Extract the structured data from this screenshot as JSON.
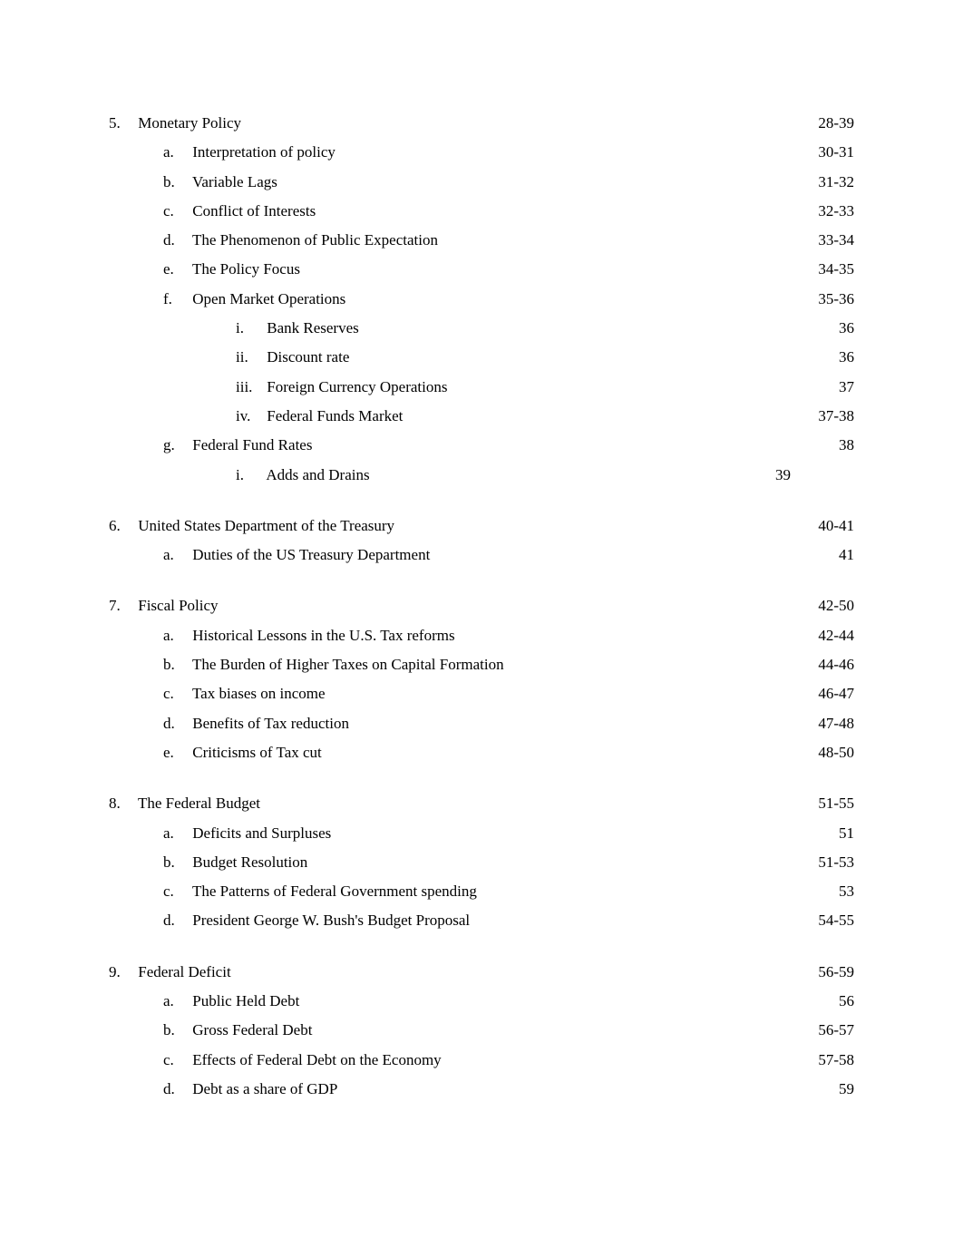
{
  "sections": [
    {
      "marker": "5.",
      "title": "Monetary Policy",
      "page": "28-39",
      "items": [
        {
          "marker": "a.",
          "title": "Interpretation of policy",
          "page": "30-31"
        },
        {
          "marker": "b.",
          "title": "Variable Lags",
          "page": "31-32"
        },
        {
          "marker": "c.",
          "title": "Conflict of Interests",
          "page": "32-33"
        },
        {
          "marker": "d.",
          "title": "The Phenomenon of Public Expectation",
          "page": "33-34"
        },
        {
          "marker": "e.",
          "title": "The Policy Focus",
          "page": "34-35"
        },
        {
          "marker": "f.",
          "title": "Open Market Operations",
          "page": "35-36",
          "subitems": [
            {
              "marker": "i.",
              "title": "Bank Reserves",
              "page": "36"
            },
            {
              "marker": "ii.",
              "title": "Discount rate",
              "page": "36"
            },
            {
              "marker": "iii.",
              "title": "Foreign Currency Operations",
              "page": "37"
            },
            {
              "marker": "iv.",
              "title": "Federal Funds Market",
              "page": "37-38"
            }
          ]
        },
        {
          "marker": "g.",
          "title": "Federal Fund Rates",
          "page": "38",
          "subitems": [
            {
              "marker": "i.",
              "title": "Adds and Drains",
              "page": "39",
              "page_offset": true
            }
          ]
        }
      ]
    },
    {
      "marker": "6.",
      "title": "United States Department of the Treasury",
      "page": "40-41",
      "items": [
        {
          "marker": "a.",
          "title": "Duties of the US Treasury Department",
          "page": "41"
        }
      ]
    },
    {
      "marker": "7.",
      "title": "Fiscal Policy",
      "page": "42-50",
      "items": [
        {
          "marker": "a.",
          "title": "Historical Lessons in the U.S. Tax reforms",
          "page": "42-44"
        },
        {
          "marker": "b.",
          "title": "The Burden of Higher Taxes on Capital Formation",
          "page": "44-46"
        },
        {
          "marker": "c.",
          "title": "Tax biases on income",
          "page": "46-47"
        },
        {
          "marker": "d.",
          "title": "Benefits of Tax reduction",
          "page": "47-48"
        },
        {
          "marker": "e.",
          "title": "Criticisms of Tax cut",
          "page": "48-50"
        }
      ]
    },
    {
      "marker": "8.",
      "title": "The Federal Budget",
      "page": "51-55",
      "items": [
        {
          "marker": "a.",
          "title": "Deficits and Surpluses",
          "page": "51"
        },
        {
          "marker": "b.",
          "title": "Budget Resolution",
          "page": "51-53"
        },
        {
          "marker": "c.",
          "title": "The Patterns of Federal Government spending",
          "page": "53"
        },
        {
          "marker": "d.",
          "title": "President George W. Bush's Budget Proposal",
          "page": "54-55"
        }
      ]
    },
    {
      "marker": "9.",
      "title": "Federal Deficit",
      "page": "56-59",
      "items": [
        {
          "marker": "a.",
          "title": "Public Held Debt",
          "page": "56"
        },
        {
          "marker": "b.",
          "title": "Gross Federal Debt",
          "page": "56-57"
        },
        {
          "marker": "c.",
          "title": "Effects of Federal Debt on the Economy",
          "page": "57-58"
        },
        {
          "marker": "d.",
          "title": "Debt as a share of GDP",
          "page": "59"
        }
      ]
    }
  ]
}
